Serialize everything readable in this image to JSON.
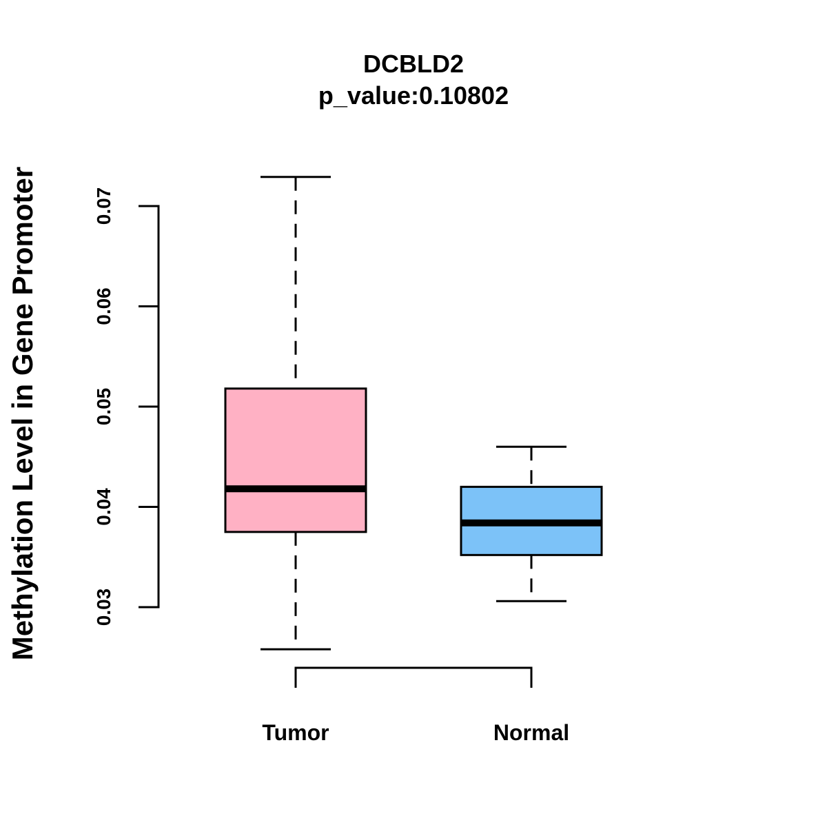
{
  "chart_data": {
    "type": "boxplot",
    "title": "DCBLD2",
    "subtitle": "p_value:0.10802",
    "xlabel": "",
    "ylabel": "Methylation Level in Gene Promoter",
    "ylim": [
      0.03,
      0.07
    ],
    "yticks": [
      0.03,
      0.04,
      0.05,
      0.06,
      0.07
    ],
    "ytick_labels": [
      "0.03",
      "0.04",
      "0.05",
      "0.06",
      "0.07"
    ],
    "categories": [
      "Tumor",
      "Normal"
    ],
    "boxes": [
      {
        "name": "Tumor",
        "whisker_low": 0.0258,
        "q1": 0.0375,
        "median": 0.0418,
        "q3": 0.0518,
        "whisker_high": 0.0729,
        "color": "#FFB1C4"
      },
      {
        "name": "Normal",
        "whisker_low": 0.0306,
        "q1": 0.0352,
        "median": 0.0384,
        "q3": 0.042,
        "whisker_high": 0.046,
        "color": "#7CC2F8"
      }
    ],
    "bracket": {
      "from": "Tumor",
      "to": "Normal"
    },
    "grid": false,
    "legend": "none"
  }
}
